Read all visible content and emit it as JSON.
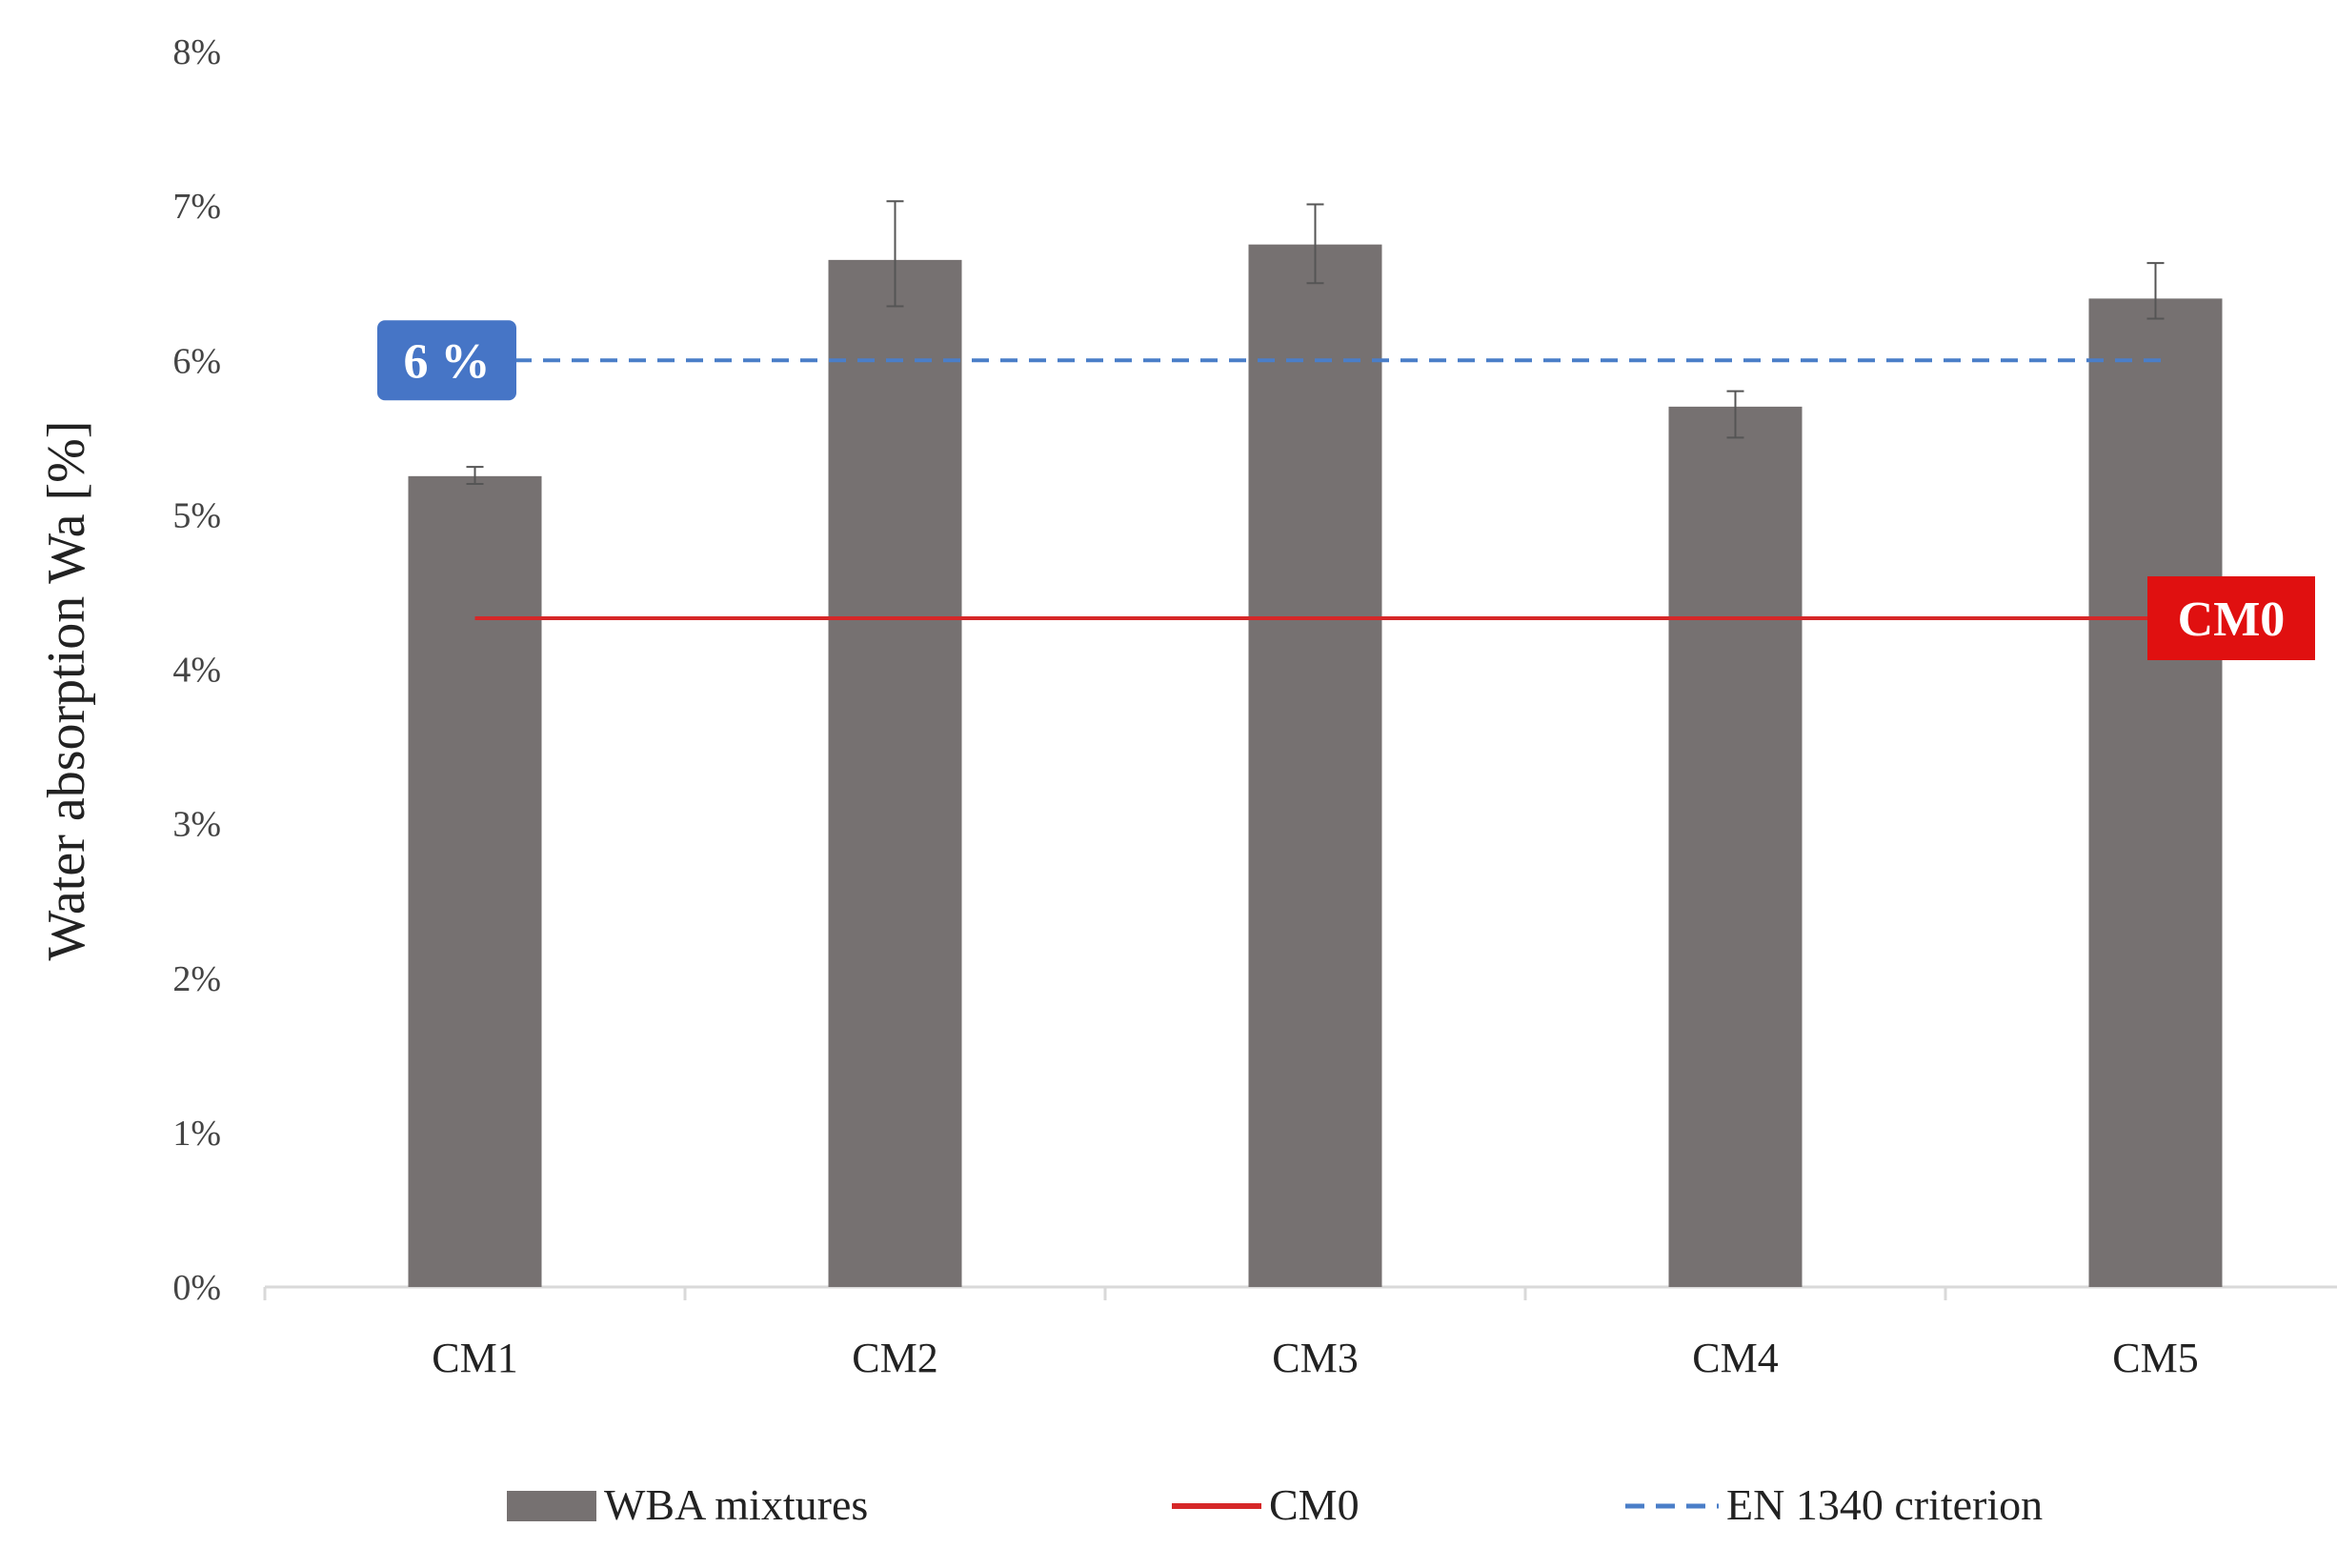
{
  "chart_data": {
    "type": "bar",
    "title": "",
    "xlabel": "",
    "ylabel": "Water absorption Wa [%]",
    "ylim": [
      0,
      8
    ],
    "y_ticks": [
      0,
      1,
      2,
      3,
      4,
      5,
      6,
      7,
      8
    ],
    "y_tick_labels": [
      "0%",
      "1%",
      "2%",
      "3%",
      "4%",
      "5%",
      "6%",
      "7%",
      "8%"
    ],
    "categories": [
      "CM1",
      "CM2",
      "CM3",
      "CM4",
      "CM5"
    ],
    "series": [
      {
        "name": "WBA mixtures",
        "values": [
          5.25,
          6.65,
          6.75,
          5.7,
          6.4
        ],
        "error_low": [
          0.05,
          0.3,
          0.25,
          0.2,
          0.13
        ],
        "error_high": [
          0.06,
          0.38,
          0.26,
          0.1,
          0.23
        ]
      }
    ],
    "reference_lines": [
      {
        "name": "CM0",
        "value": 4.33,
        "style": "solid",
        "badge": "CM0"
      },
      {
        "name": "EN 1340 criterion",
        "value": 6.0,
        "style": "dashed",
        "badge": "6 %"
      }
    ],
    "legend": {
      "position": "bottom",
      "entries": [
        "WBA mixtures",
        "CM0",
        "EN 1340 criterion"
      ]
    },
    "grid": false
  },
  "colors": {
    "bar": "#767171",
    "error_bar": "#555555",
    "cm0_line": "#d62728",
    "cm0_badge": "#e01010",
    "criterion_line": "#4a7ec8",
    "criterion_badge": "#4675c6",
    "axis": "#d9d9d9"
  }
}
